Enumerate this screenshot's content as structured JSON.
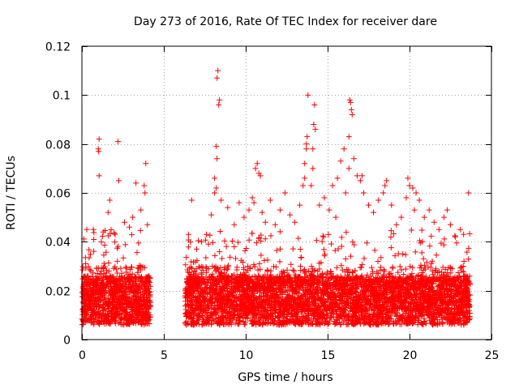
{
  "chart_data": {
    "type": "scatter",
    "title": "Day 273 of 2016, Rate Of TEC Index for receiver dare",
    "xlabel": "GPS time / hours",
    "ylabel": "ROTI / TECUs",
    "xlim": [
      0,
      25
    ],
    "ylim": [
      0,
      0.12
    ],
    "xticks": [
      0,
      5,
      10,
      15,
      20,
      25
    ],
    "xtick_labels": [
      "0",
      "5",
      "10",
      "15",
      "20",
      "25"
    ],
    "yticks": [
      0,
      0.02,
      0.04,
      0.06,
      0.08,
      0.1,
      0.12
    ],
    "ytick_labels": [
      "0",
      "0.02",
      "0.04",
      "0.06",
      "0.08",
      "0.1",
      "0.12"
    ],
    "grid": true,
    "marker": "+",
    "series": [
      {
        "name": "ROTI",
        "color": "#ff0000",
        "note_density": "dense band of points with ROTI mostly between 0.005 and 0.03 over 0-4.2 h and 6.3-23.7 h",
        "points": [
          [
            1.05,
            0.082
          ],
          [
            1.0,
            0.078
          ],
          [
            1.02,
            0.077
          ],
          [
            1.05,
            0.067
          ],
          [
            2.2,
            0.081
          ],
          [
            2.25,
            0.065
          ],
          [
            3.3,
            0.064
          ],
          [
            3.8,
            0.063
          ],
          [
            3.85,
            0.06
          ],
          [
            3.9,
            0.072
          ],
          [
            1.7,
            0.057
          ],
          [
            1.6,
            0.052
          ],
          [
            0.3,
            0.045
          ],
          [
            0.7,
            0.045
          ],
          [
            2.6,
            0.048
          ],
          [
            3.1,
            0.05
          ],
          [
            3.6,
            0.053
          ],
          [
            4.0,
            0.047
          ],
          [
            1.3,
            0.044
          ],
          [
            2.9,
            0.046
          ],
          [
            6.5,
            0.043
          ],
          [
            6.7,
            0.057
          ],
          [
            7.0,
            0.037
          ],
          [
            7.3,
            0.04
          ],
          [
            7.6,
            0.043
          ],
          [
            7.9,
            0.051
          ],
          [
            8.1,
            0.066
          ],
          [
            8.2,
            0.079
          ],
          [
            8.25,
            0.107
          ],
          [
            8.3,
            0.11
          ],
          [
            8.35,
            0.096
          ],
          [
            8.4,
            0.098
          ],
          [
            8.25,
            0.074
          ],
          [
            8.2,
            0.062
          ],
          [
            8.1,
            0.06
          ],
          [
            8.5,
            0.057
          ],
          [
            8.9,
            0.054
          ],
          [
            9.3,
            0.047
          ],
          [
            9.6,
            0.056
          ],
          [
            9.9,
            0.05
          ],
          [
            10.2,
            0.053
          ],
          [
            10.4,
            0.058
          ],
          [
            10.6,
            0.07
          ],
          [
            10.7,
            0.072
          ],
          [
            10.8,
            0.068
          ],
          [
            10.9,
            0.067
          ],
          [
            10.5,
            0.056
          ],
          [
            11.0,
            0.052
          ],
          [
            11.2,
            0.048
          ],
          [
            11.5,
            0.057
          ],
          [
            11.8,
            0.047
          ],
          [
            12.1,
            0.053
          ],
          [
            12.4,
            0.06
          ],
          [
            12.7,
            0.051
          ],
          [
            13.0,
            0.048
          ],
          [
            13.3,
            0.055
          ],
          [
            13.5,
            0.063
          ],
          [
            13.6,
            0.072
          ],
          [
            13.7,
            0.078
          ],
          [
            13.75,
            0.083
          ],
          [
            13.8,
            0.1
          ],
          [
            13.7,
            0.08
          ],
          [
            13.6,
            0.066
          ],
          [
            14.0,
            0.063
          ],
          [
            14.1,
            0.078
          ],
          [
            14.15,
            0.088
          ],
          [
            14.2,
            0.096
          ],
          [
            14.25,
            0.086
          ],
          [
            14.1,
            0.07
          ],
          [
            14.5,
            0.055
          ],
          [
            14.8,
            0.058
          ],
          [
            15.1,
            0.053
          ],
          [
            15.3,
            0.063
          ],
          [
            15.5,
            0.05
          ],
          [
            15.6,
            0.066
          ],
          [
            15.8,
            0.073
          ],
          [
            16.0,
            0.078
          ],
          [
            16.1,
            0.06
          ],
          [
            16.3,
            0.083
          ],
          [
            16.35,
            0.098
          ],
          [
            16.4,
            0.097
          ],
          [
            16.45,
            0.094
          ],
          [
            16.5,
            0.092
          ],
          [
            16.3,
            0.07
          ],
          [
            16.6,
            0.074
          ],
          [
            16.8,
            0.067
          ],
          [
            17.0,
            0.065
          ],
          [
            17.2,
            0.06
          ],
          [
            17.5,
            0.055
          ],
          [
            17.8,
            0.052
          ],
          [
            18.1,
            0.057
          ],
          [
            18.4,
            0.06
          ],
          [
            18.6,
            0.065
          ],
          [
            18.9,
            0.055
          ],
          [
            19.2,
            0.047
          ],
          [
            19.5,
            0.05
          ],
          [
            19.8,
            0.058
          ],
          [
            20.0,
            0.063
          ],
          [
            20.2,
            0.062
          ],
          [
            20.4,
            0.06
          ],
          [
            20.6,
            0.057
          ],
          [
            20.3,
            0.053
          ],
          [
            20.9,
            0.05
          ],
          [
            21.2,
            0.053
          ],
          [
            21.5,
            0.048
          ],
          [
            21.8,
            0.045
          ],
          [
            22.1,
            0.05
          ],
          [
            22.3,
            0.053
          ],
          [
            22.5,
            0.047
          ],
          [
            22.8,
            0.042
          ],
          [
            23.1,
            0.045
          ],
          [
            23.3,
            0.043
          ],
          [
            23.6,
            0.06
          ],
          [
            19.9,
            0.066
          ],
          [
            17.1,
            0.067
          ],
          [
            18.5,
            0.063
          ]
        ]
      }
    ]
  }
}
